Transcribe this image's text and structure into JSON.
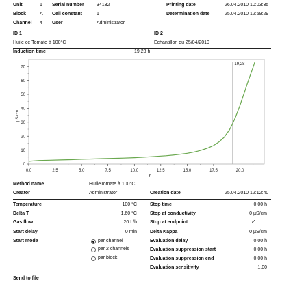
{
  "header": {
    "unit_label": "Unit",
    "unit_value": "1",
    "block_label": "Block",
    "block_value": "A",
    "channel_label": "Channel",
    "channel_value": "4",
    "serial_label": "Serial number",
    "serial_value": "34132",
    "cell_label": "Cell constant",
    "cell_value": "1",
    "user_label": "User",
    "user_value": "Administrator",
    "printing_label": "Printing date",
    "printing_value": "26.04.2010 10:03:35",
    "determination_label": "Determination date",
    "determination_value": "25.04.2010 12:59:29"
  },
  "ids": {
    "id1_label": "ID 1",
    "id1_value": "Huile ce Tomate  à 100°C",
    "id2_label": "ID 2",
    "id2_value": "Echantillon du 25/04/2010"
  },
  "induction": {
    "label": "Induction time",
    "value": "19,28 h"
  },
  "chart_data": {
    "type": "line",
    "xlabel": "h",
    "ylabel": "µS/cm",
    "xlim": [
      0,
      22.3
    ],
    "ylim": [
      0,
      75
    ],
    "x_ticks": [
      "0,0",
      "2,5",
      "5,0",
      "7,5",
      "10,0",
      "12,5",
      "15,0",
      "17,5",
      "20,0"
    ],
    "y_ticks": [
      "0",
      "10",
      "20",
      "30",
      "40",
      "50",
      "60",
      "70"
    ],
    "series": [
      {
        "color": "#6aa84f",
        "x": [
          0,
          1,
          2,
          3,
          4,
          5,
          6,
          7,
          8,
          9,
          10,
          11,
          12,
          13,
          14,
          15,
          15.5,
          16,
          16.5,
          17,
          17.5,
          18,
          18.5,
          19,
          19.28,
          19.6,
          20,
          20.4,
          20.8,
          21.2,
          21.4
        ],
        "y": [
          2.0,
          2.6,
          2.8,
          3.0,
          3.2,
          3.5,
          3.7,
          3.9,
          4.1,
          4.3,
          4.6,
          5.0,
          5.5,
          6.0,
          6.7,
          7.7,
          8.4,
          9.2,
          10.3,
          11.6,
          13.3,
          15.8,
          19.2,
          24.5,
          28.5,
          34,
          42,
          51,
          60,
          68.5,
          73
        ]
      }
    ],
    "annotations": [
      {
        "text": "19,28",
        "x": 19.28
      }
    ]
  },
  "method": {
    "method_label": "Method name",
    "method_value": "HUileTomate  à 100°C",
    "creator_label": "Creator",
    "creator_value": "Administrator",
    "creation_label": "Creation date",
    "creation_value": "25.04.2010 12:12:40"
  },
  "params_left": [
    {
      "label": "Temperature",
      "value": "100 °C"
    },
    {
      "label": "Delta T",
      "value": "1,60 °C"
    },
    {
      "label": "Gas flow",
      "value": "20 L/h"
    },
    {
      "label": "Start delay",
      "value": "0 min"
    },
    {
      "label": "Start mode",
      "value": ""
    }
  ],
  "start_mode_options": [
    {
      "label": "per channel",
      "selected": true
    },
    {
      "label": "per 2 channels",
      "selected": false
    },
    {
      "label": "per block",
      "selected": false
    }
  ],
  "params_right": [
    {
      "label": "Stop time",
      "value": "0,00 h"
    },
    {
      "label": "Stop at conductivity",
      "value": "0 µS/cm"
    },
    {
      "label": "Stop at endpoint",
      "value": "✓"
    },
    {
      "label": "Delta Kappa",
      "value": "0 µS/cm"
    },
    {
      "label": "Evaluation delay",
      "value": "0,00 h"
    },
    {
      "label": "Evaluation suppression start",
      "value": "0,00 h"
    },
    {
      "label": "Evaluation suppression end",
      "value": "0,00 h"
    },
    {
      "label": "Evaluation sensitivity",
      "value": "1,00"
    }
  ],
  "footer": {
    "send_to_file": "Send to file"
  }
}
